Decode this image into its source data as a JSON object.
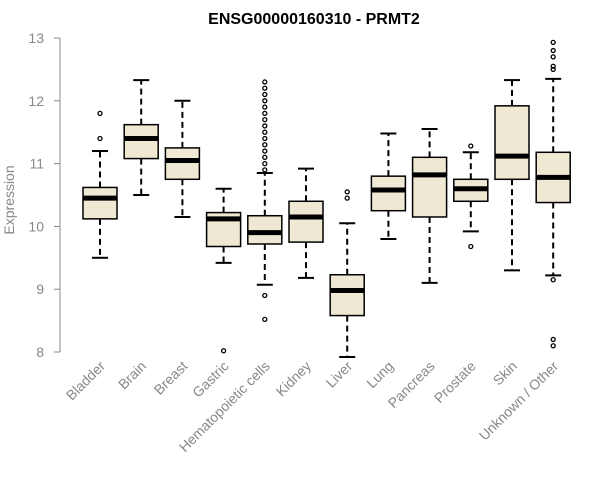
{
  "chart_data": {
    "type": "boxplot",
    "title": "ENSG00000160310 - PRMT2",
    "xlabel": "",
    "ylabel": "Expression",
    "ylim": [
      7.8,
      13.0
    ],
    "yticks": [
      8,
      9,
      10,
      11,
      12,
      13
    ],
    "box_fill": "#efe8d2",
    "box_stroke": "#000000",
    "axis_color": "#888888",
    "categories": [
      "Bladder",
      "Brain",
      "Breast",
      "Gastric",
      "Hematopoietic cells",
      "Kidney",
      "Liver",
      "Lung",
      "Pancreas",
      "Prostate",
      "Skin",
      "Unknown / Other"
    ],
    "boxes": [
      {
        "min": 9.5,
        "q1": 10.12,
        "median": 10.45,
        "q3": 10.62,
        "max": 11.2,
        "outliers": [
          11.4,
          11.8
        ]
      },
      {
        "min": 10.5,
        "q1": 11.08,
        "median": 11.4,
        "q3": 11.62,
        "max": 12.33,
        "outliers": []
      },
      {
        "min": 10.15,
        "q1": 10.75,
        "median": 11.05,
        "q3": 11.25,
        "max": 12.0,
        "outliers": []
      },
      {
        "min": 9.42,
        "q1": 9.68,
        "median": 10.12,
        "q3": 10.22,
        "max": 10.6,
        "outliers": [
          8.02
        ]
      },
      {
        "min": 9.07,
        "q1": 9.72,
        "median": 9.9,
        "q3": 10.17,
        "max": 10.85,
        "outliers": [
          8.9,
          8.52,
          10.9,
          11.0,
          11.1,
          11.2,
          11.3,
          11.4,
          11.5,
          11.6,
          11.7,
          11.8,
          11.9,
          12.0,
          12.1,
          12.2,
          12.3
        ]
      },
      {
        "min": 9.18,
        "q1": 9.75,
        "median": 10.15,
        "q3": 10.4,
        "max": 10.92,
        "outliers": []
      },
      {
        "min": 7.92,
        "q1": 8.58,
        "median": 8.98,
        "q3": 9.23,
        "max": 10.05,
        "outliers": [
          10.45,
          10.55
        ]
      },
      {
        "min": 9.8,
        "q1": 10.25,
        "median": 10.58,
        "q3": 10.8,
        "max": 11.48,
        "outliers": []
      },
      {
        "min": 9.1,
        "q1": 10.15,
        "median": 10.82,
        "q3": 11.1,
        "max": 11.55,
        "outliers": []
      },
      {
        "min": 9.92,
        "q1": 10.4,
        "median": 10.6,
        "q3": 10.75,
        "max": 11.18,
        "outliers": [
          9.68,
          11.28
        ]
      },
      {
        "min": 9.3,
        "q1": 10.75,
        "median": 11.12,
        "q3": 11.92,
        "max": 12.33,
        "outliers": []
      },
      {
        "min": 9.22,
        "q1": 10.38,
        "median": 10.78,
        "q3": 11.18,
        "max": 12.35,
        "outliers": [
          9.15,
          8.1,
          8.2,
          12.5,
          12.55,
          12.7,
          12.8,
          12.93
        ]
      }
    ]
  }
}
